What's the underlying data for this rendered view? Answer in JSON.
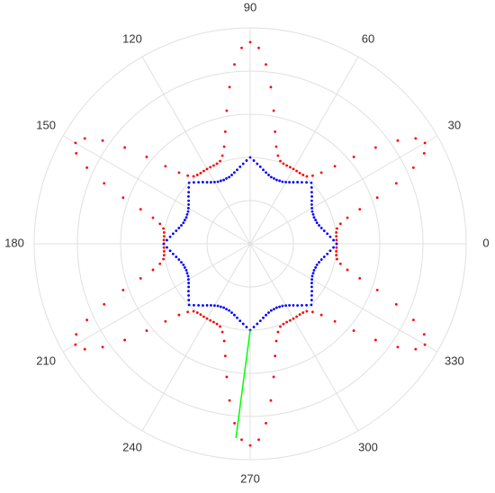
{
  "chart_data": {
    "type": "polar",
    "rlim": [
      0,
      5
    ],
    "rticks": [
      1,
      2,
      3,
      4,
      5
    ],
    "thetaticks": [
      0,
      30,
      60,
      90,
      120,
      150,
      180,
      210,
      240,
      270,
      300,
      330
    ],
    "grid": true,
    "theta": [
      0,
      2.5,
      5,
      7.5,
      10,
      12.5,
      15,
      17.5,
      20,
      22.5,
      25,
      27.5,
      30,
      32.5,
      35,
      37.5,
      40,
      42.5,
      45,
      47.5,
      50,
      52.5,
      55,
      57.5,
      60,
      62.5,
      65,
      67.5,
      70,
      72.5,
      75,
      77.5,
      80,
      82.5,
      85,
      87.5,
      90,
      92.5,
      95,
      97.5,
      100,
      102.5,
      105,
      107.5,
      110,
      112.5,
      115,
      117.5,
      120,
      122.5,
      125,
      127.5,
      130,
      132.5,
      135,
      137.5,
      140,
      142.5,
      145,
      147.5,
      150,
      152.5,
      155,
      157.5,
      160,
      162.5,
      165,
      167.5,
      170,
      172.5,
      175,
      177.5,
      180,
      182.5,
      185,
      187.5,
      190,
      192.5,
      195,
      197.5,
      200,
      202.5,
      205,
      207.5,
      210,
      212.5,
      215,
      217.5,
      220,
      222.5,
      225,
      227.5,
      230,
      232.5,
      235,
      237.5,
      240,
      242.5,
      245,
      247.5,
      250,
      252.5,
      255,
      257.5,
      260,
      262.5,
      265,
      267.5,
      270,
      272.5,
      275,
      277.5,
      280,
      282.5,
      285,
      287.5,
      290,
      292.5,
      295,
      297.5,
      300,
      302.5,
      305,
      307.5,
      310,
      312.5,
      315,
      317.5,
      320,
      322.5,
      325,
      327.5,
      330,
      332.5,
      335,
      337.5,
      340,
      342.5,
      345,
      347.5,
      350,
      352.5,
      355,
      357.5
    ],
    "series": [
      {
        "mode": "markers",
        "color": "#ff0000",
        "r": [
          2,
          2,
          2,
          2.01,
          2.04,
          2.14,
          2.33,
          2.66,
          3.13,
          3.66,
          4.17,
          4.54,
          4.67,
          4.54,
          4.17,
          3.66,
          3.13,
          2.66,
          2.33,
          2.14,
          2.04,
          2.01,
          2,
          2,
          2,
          2,
          2,
          2.01,
          2.04,
          2.14,
          2.33,
          2.66,
          3.13,
          3.66,
          4.17,
          4.54,
          4.67,
          4.54,
          4.17,
          3.66,
          3.13,
          2.66,
          2.33,
          2.14,
          2.04,
          2.01,
          2,
          2,
          2,
          2,
          2,
          2.01,
          2.04,
          2.14,
          2.33,
          2.66,
          3.13,
          3.66,
          4.17,
          4.54,
          4.67,
          4.54,
          4.17,
          3.66,
          3.13,
          2.66,
          2.33,
          2.14,
          2.04,
          2.01,
          2,
          2,
          2,
          2,
          2,
          2.01,
          2.04,
          2.14,
          2.33,
          2.66,
          3.13,
          3.66,
          4.17,
          4.54,
          4.67,
          4.54,
          4.17,
          3.66,
          3.13,
          2.66,
          2.33,
          2.14,
          2.04,
          2.01,
          2,
          2,
          2,
          2,
          2,
          2.01,
          2.04,
          2.14,
          2.33,
          2.66,
          3.13,
          3.66,
          4.17,
          4.54,
          4.67,
          4.54,
          4.17,
          3.66,
          3.13,
          2.66,
          2.33,
          2.14,
          2.04,
          2.01,
          2,
          2,
          2,
          2,
          2,
          2.01,
          2.04,
          2.14,
          2.33,
          2.66,
          3.13,
          3.66,
          4.17,
          4.54,
          4.67,
          4.54,
          4.17,
          3.66,
          3.13,
          2.66,
          2.33,
          2.14,
          2.04,
          2.01,
          2,
          2
        ]
      },
      {
        "mode": "markers",
        "color": "#0000ff",
        "r": [
          2,
          1.93,
          1.86,
          1.8,
          1.74,
          1.69,
          1.65,
          1.62,
          1.61,
          1.6,
          1.61,
          1.62,
          1.65,
          1.69,
          1.74,
          1.8,
          1.86,
          1.93,
          2,
          1.93,
          1.86,
          1.8,
          1.74,
          1.69,
          1.65,
          1.62,
          1.61,
          1.6,
          1.61,
          1.62,
          1.65,
          1.69,
          1.74,
          1.8,
          1.86,
          1.93,
          2,
          1.93,
          1.86,
          1.8,
          1.74,
          1.69,
          1.65,
          1.62,
          1.61,
          1.6,
          1.61,
          1.62,
          1.65,
          1.69,
          1.74,
          1.8,
          1.86,
          1.93,
          2,
          1.93,
          1.86,
          1.8,
          1.74,
          1.69,
          1.65,
          1.62,
          1.61,
          1.6,
          1.61,
          1.62,
          1.65,
          1.69,
          1.74,
          1.8,
          1.86,
          1.93,
          2,
          1.93,
          1.86,
          1.8,
          1.74,
          1.69,
          1.65,
          1.62,
          1.61,
          1.6,
          1.61,
          1.62,
          1.65,
          1.69,
          1.74,
          1.8,
          1.86,
          1.93,
          2,
          1.93,
          1.86,
          1.8,
          1.74,
          1.69,
          1.65,
          1.62,
          1.61,
          1.6,
          1.61,
          1.62,
          1.65,
          1.69,
          1.74,
          1.8,
          1.86,
          1.93,
          2,
          1.93,
          1.86,
          1.8,
          1.74,
          1.69,
          1.65,
          1.62,
          1.61,
          1.6,
          1.61,
          1.62,
          1.65,
          1.69,
          1.74,
          1.8,
          1.86,
          1.93,
          2,
          1.93,
          1.86,
          1.8,
          1.74,
          1.69,
          1.65,
          1.62,
          1.61,
          1.6,
          1.61,
          1.62,
          1.65,
          1.69,
          1.74,
          1.8,
          1.86,
          1.93
        ]
      },
      {
        "mode": "lines",
        "color": "#00ff00",
        "theta": [
          270,
          265.8
        ],
        "r": [
          2,
          4.51
        ]
      }
    ]
  }
}
